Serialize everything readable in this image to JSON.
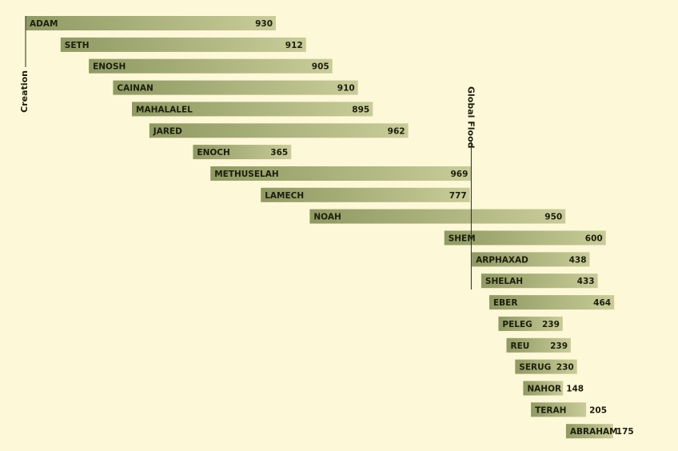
{
  "chart_data": {
    "type": "bar",
    "orientation": "horizontal-timeline",
    "x_unit": "years after Creation (AM)",
    "series": [
      {
        "name": "ADAM",
        "start": 0,
        "lifespan": 930
      },
      {
        "name": "SETH",
        "start": 130,
        "lifespan": 912
      },
      {
        "name": "ENOSH",
        "start": 235,
        "lifespan": 905
      },
      {
        "name": "CAINAN",
        "start": 325,
        "lifespan": 910
      },
      {
        "name": "MAHALALEL",
        "start": 395,
        "lifespan": 895
      },
      {
        "name": "JARED",
        "start": 460,
        "lifespan": 962
      },
      {
        "name": "ENOCH",
        "start": 622,
        "lifespan": 365
      },
      {
        "name": "METHUSELAH",
        "start": 687,
        "lifespan": 969
      },
      {
        "name": "LAMECH",
        "start": 874,
        "lifespan": 777
      },
      {
        "name": "NOAH",
        "start": 1056,
        "lifespan": 950
      },
      {
        "name": "SHEM",
        "start": 1556,
        "lifespan": 600
      },
      {
        "name": "ARPHAXAD",
        "start": 1658,
        "lifespan": 438
      },
      {
        "name": "SHELAH",
        "start": 1693,
        "lifespan": 433
      },
      {
        "name": "EBER",
        "start": 1723,
        "lifespan": 464
      },
      {
        "name": "PELEG",
        "start": 1757,
        "lifespan": 239
      },
      {
        "name": "REU",
        "start": 1787,
        "lifespan": 239
      },
      {
        "name": "SERUG",
        "start": 1819,
        "lifespan": 230
      },
      {
        "name": "NAHOR",
        "start": 1849,
        "lifespan": 148
      },
      {
        "name": "TERAH",
        "start": 1878,
        "lifespan": 205
      },
      {
        "name": "ABRAHAM",
        "start": 2008,
        "lifespan": 175
      }
    ],
    "markers": [
      {
        "label": "Creation",
        "at": 0
      },
      {
        "label": "Global Flood",
        "at": 1656
      }
    ],
    "colors": {
      "background": "#fdf8d8",
      "bar_dark": "#8f9a62",
      "bar_light": "#c9cc98",
      "text": "#1e1e10",
      "marker_line": "#2a2a1a"
    },
    "grid": false,
    "legend": "none"
  }
}
